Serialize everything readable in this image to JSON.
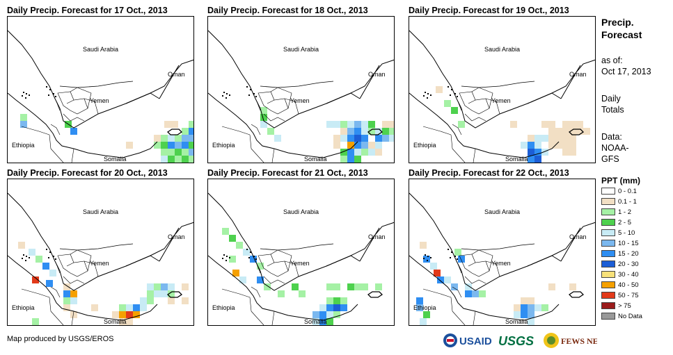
{
  "panels": [
    {
      "title": "Daily Precip. Forecast for 17 Oct., 2013",
      "rain": [
        [
          18,
          140,
          "#a5f1a5"
        ],
        [
          18,
          150,
          "#7bb8ef"
        ],
        [
          82,
          150,
          "#4ed14e"
        ],
        [
          90,
          160,
          "#2f8ef2"
        ],
        [
          170,
          180,
          "#f2dfc4"
        ],
        [
          225,
          150,
          "#f2dfc4"
        ],
        [
          235,
          150,
          "#f2dfc4"
        ],
        [
          260,
          150,
          "#a5f1a5"
        ],
        [
          250,
          160,
          "#a5f1a5"
        ],
        [
          260,
          160,
          "#2f8ef2"
        ],
        [
          210,
          170,
          "#f2dfc4"
        ],
        [
          220,
          170,
          "#a5f1a5"
        ],
        [
          230,
          170,
          "#c8ebf5"
        ],
        [
          240,
          170,
          "#a5f1a5"
        ],
        [
          250,
          170,
          "#7bb8ef"
        ],
        [
          260,
          170,
          "#7bb8ef"
        ],
        [
          210,
          180,
          "#a5f1a5"
        ],
        [
          220,
          180,
          "#4ed14e"
        ],
        [
          230,
          180,
          "#2f8ef2"
        ],
        [
          240,
          180,
          "#7bb8ef"
        ],
        [
          250,
          180,
          "#2f8ef2"
        ],
        [
          260,
          180,
          "#4ed14e"
        ],
        [
          220,
          190,
          "#a5f1a5"
        ],
        [
          230,
          190,
          "#a5f1a5"
        ],
        [
          240,
          190,
          "#4ed14e"
        ],
        [
          250,
          190,
          "#a5f1a5"
        ],
        [
          260,
          190,
          "#7bb8ef"
        ],
        [
          220,
          200,
          "#c8ebf5"
        ],
        [
          230,
          200,
          "#4ed14e"
        ],
        [
          240,
          200,
          "#a5f1a5"
        ],
        [
          250,
          200,
          "#4ed14e"
        ],
        [
          260,
          200,
          "#a5f1a5"
        ]
      ]
    },
    {
      "title": "Daily Precip. Forecast for 18 Oct., 2013",
      "rain": [
        [
          75,
          130,
          "#a5f1a5"
        ],
        [
          75,
          140,
          "#4ed14e"
        ],
        [
          75,
          150,
          "#c8ebf5"
        ],
        [
          85,
          160,
          "#a5f1a5"
        ],
        [
          95,
          170,
          "#c8ebf5"
        ],
        [
          170,
          150,
          "#c8ebf5"
        ],
        [
          180,
          150,
          "#c8ebf5"
        ],
        [
          190,
          150,
          "#a5f1a5"
        ],
        [
          200,
          150,
          "#c8ebf5"
        ],
        [
          210,
          150,
          "#7bb8ef"
        ],
        [
          220,
          150,
          "#c8ebf5"
        ],
        [
          230,
          150,
          "#4ed14e"
        ],
        [
          250,
          150,
          "#f2dfc4"
        ],
        [
          260,
          150,
          "#f2dfc4"
        ],
        [
          190,
          160,
          "#f2dfc4"
        ],
        [
          200,
          160,
          "#7bb8ef"
        ],
        [
          210,
          160,
          "#2f8ef2"
        ],
        [
          220,
          160,
          "#c8ebf5"
        ],
        [
          230,
          160,
          "#a5f1a5"
        ],
        [
          240,
          160,
          "#c8ebf5"
        ],
        [
          250,
          160,
          "#4ed14e"
        ],
        [
          260,
          160,
          "#a5f1a5"
        ],
        [
          180,
          170,
          "#f2dfc4"
        ],
        [
          190,
          170,
          "#c8ebf5"
        ],
        [
          200,
          170,
          "#2f8ef2"
        ],
        [
          210,
          170,
          "#1c5ed6"
        ],
        [
          220,
          170,
          "#2f8ef2"
        ],
        [
          240,
          170,
          "#2f8ef2"
        ],
        [
          250,
          170,
          "#7bb8ef"
        ],
        [
          260,
          170,
          "#c8ebf5"
        ],
        [
          180,
          180,
          "#f2dfc4"
        ],
        [
          200,
          180,
          "#f5a000"
        ],
        [
          210,
          180,
          "#2f8ef2"
        ],
        [
          220,
          180,
          "#7bb8ef"
        ],
        [
          230,
          180,
          "#f2dfc4"
        ],
        [
          240,
          180,
          "#c8ebf5"
        ],
        [
          190,
          190,
          "#4ed14e"
        ],
        [
          200,
          190,
          "#2f8ef2"
        ],
        [
          210,
          190,
          "#c8ebf5"
        ],
        [
          220,
          190,
          "#a5f1a5"
        ],
        [
          230,
          190,
          "#c8ebf5"
        ],
        [
          240,
          190,
          "#f2dfc4"
        ],
        [
          190,
          200,
          "#a5f1a5"
        ],
        [
          200,
          200,
          "#2f8ef2"
        ],
        [
          210,
          200,
          "#4ed14e"
        ]
      ]
    },
    {
      "title": "Daily Precip. Forecast for 19 Oct., 2013",
      "rain": [
        [
          38,
          100,
          "#f2dfc4"
        ],
        [
          50,
          120,
          "#a5f1a5"
        ],
        [
          60,
          130,
          "#4ed14e"
        ],
        [
          70,
          150,
          "#a5f1a5"
        ],
        [
          145,
          150,
          "#f2dfc4"
        ],
        [
          190,
          150,
          "#f2dfc4"
        ],
        [
          200,
          150,
          "#f2dfc4"
        ],
        [
          220,
          150,
          "#f2dfc4"
        ],
        [
          230,
          150,
          "#f2dfc4"
        ],
        [
          240,
          150,
          "#f2dfc4"
        ],
        [
          200,
          160,
          "#f2dfc4"
        ],
        [
          210,
          160,
          "#f2dfc4"
        ],
        [
          220,
          160,
          "#f2dfc4"
        ],
        [
          230,
          160,
          "#f2dfc4"
        ],
        [
          240,
          160,
          "#f2dfc4"
        ],
        [
          250,
          160,
          "#f2dfc4"
        ],
        [
          170,
          170,
          "#f2dfc4"
        ],
        [
          180,
          170,
          "#c8ebf5"
        ],
        [
          190,
          170,
          "#c8ebf5"
        ],
        [
          200,
          170,
          "#f2dfc4"
        ],
        [
          210,
          170,
          "#f2dfc4"
        ],
        [
          220,
          170,
          "#f2dfc4"
        ],
        [
          230,
          170,
          "#f2dfc4"
        ],
        [
          160,
          180,
          "#c8ebf5"
        ],
        [
          170,
          180,
          "#2f8ef2"
        ],
        [
          180,
          180,
          "#c8ebf5"
        ],
        [
          200,
          180,
          "#f2dfc4"
        ],
        [
          210,
          180,
          "#f2dfc4"
        ],
        [
          220,
          180,
          "#f2dfc4"
        ],
        [
          230,
          180,
          "#f2dfc4"
        ],
        [
          170,
          190,
          "#1c5ed6"
        ],
        [
          180,
          190,
          "#2f8ef2"
        ],
        [
          190,
          190,
          "#c8ebf5"
        ],
        [
          220,
          190,
          "#f2dfc4"
        ],
        [
          230,
          190,
          "#f2dfc4"
        ],
        [
          170,
          200,
          "#2f8ef2"
        ],
        [
          180,
          200,
          "#1c5ed6"
        ]
      ]
    },
    {
      "title": "Daily Precip. Forecast for 20 Oct., 2013",
      "rain": [
        [
          15,
          90,
          "#f2dfc4"
        ],
        [
          30,
          100,
          "#c8ebf5"
        ],
        [
          40,
          110,
          "#a5f1a5"
        ],
        [
          50,
          120,
          "#2f8ef2"
        ],
        [
          60,
          130,
          "#c8ebf5"
        ],
        [
          35,
          140,
          "#e23a1a"
        ],
        [
          55,
          145,
          "#2f8ef2"
        ],
        [
          80,
          150,
          "#f2dfc4"
        ],
        [
          80,
          160,
          "#2f8ef2"
        ],
        [
          90,
          160,
          "#f5a000"
        ],
        [
          80,
          170,
          "#a5f1a5"
        ],
        [
          90,
          170,
          "#c8ebf5"
        ],
        [
          35,
          200,
          "#a5f1a5"
        ],
        [
          80,
          180,
          "#f2dfc4"
        ],
        [
          90,
          190,
          "#f2dfc4"
        ],
        [
          120,
          180,
          "#f2dfc4"
        ],
        [
          200,
          150,
          "#c8ebf5"
        ],
        [
          210,
          150,
          "#a5f1a5"
        ],
        [
          220,
          150,
          "#7bb8ef"
        ],
        [
          230,
          150,
          "#c8ebf5"
        ],
        [
          250,
          150,
          "#f2dfc4"
        ],
        [
          200,
          160,
          "#a5f1a5"
        ],
        [
          210,
          160,
          "#c8ebf5"
        ],
        [
          220,
          160,
          "#c8ebf5"
        ],
        [
          230,
          160,
          "#a5f1a5"
        ],
        [
          190,
          170,
          "#c8ebf5"
        ],
        [
          200,
          170,
          "#a5f1a5"
        ],
        [
          230,
          170,
          "#f2dfc4"
        ],
        [
          250,
          170,
          "#f2dfc4"
        ],
        [
          160,
          180,
          "#a5f1a5"
        ],
        [
          170,
          180,
          "#c8ebf5"
        ],
        [
          180,
          180,
          "#2f8ef2"
        ],
        [
          190,
          180,
          "#c8ebf5"
        ],
        [
          150,
          190,
          "#f2dfc4"
        ],
        [
          160,
          190,
          "#f5a000"
        ],
        [
          170,
          190,
          "#e23a1a"
        ],
        [
          180,
          190,
          "#f5a000"
        ],
        [
          160,
          200,
          "#f2dfc4"
        ],
        [
          170,
          200,
          "#f2dfc4"
        ]
      ]
    },
    {
      "title": "Daily Precip. Forecast for 21 Oct., 2013",
      "rain": [
        [
          20,
          70,
          "#a5f1a5"
        ],
        [
          30,
          80,
          "#4ed14e"
        ],
        [
          40,
          90,
          "#a5f1a5"
        ],
        [
          50,
          100,
          "#c8ebf5"
        ],
        [
          60,
          110,
          "#2f8ef2"
        ],
        [
          70,
          120,
          "#a5f1a5"
        ],
        [
          30,
          110,
          "#a5f1a5"
        ],
        [
          35,
          130,
          "#f5a000"
        ],
        [
          45,
          140,
          "#c8ebf5"
        ],
        [
          70,
          140,
          "#2f8ef2"
        ],
        [
          80,
          150,
          "#a5f1a5"
        ],
        [
          100,
          160,
          "#a5f1a5"
        ],
        [
          120,
          150,
          "#4ed14e"
        ],
        [
          130,
          160,
          "#a5f1a5"
        ],
        [
          170,
          150,
          "#a5f1a5"
        ],
        [
          180,
          150,
          "#a5f1a5"
        ],
        [
          200,
          150,
          "#4ed14e"
        ],
        [
          210,
          150,
          "#a5f1a5"
        ],
        [
          220,
          150,
          "#a5f1a5"
        ],
        [
          240,
          150,
          "#a5f1a5"
        ],
        [
          170,
          170,
          "#a5f1a5"
        ],
        [
          180,
          170,
          "#4ed14e"
        ],
        [
          190,
          170,
          "#a5f1a5"
        ],
        [
          160,
          180,
          "#c8ebf5"
        ],
        [
          170,
          180,
          "#2f8ef2"
        ],
        [
          180,
          180,
          "#1c5ed6"
        ],
        [
          190,
          180,
          "#2f8ef2"
        ],
        [
          150,
          190,
          "#7bb8ef"
        ],
        [
          160,
          190,
          "#2f8ef2"
        ],
        [
          170,
          190,
          "#c8ebf5"
        ],
        [
          180,
          190,
          "#a5f1a5"
        ],
        [
          150,
          200,
          "#c8ebf5"
        ],
        [
          160,
          200,
          "#2f8ef2"
        ],
        [
          170,
          200,
          "#4ed14e"
        ]
      ]
    },
    {
      "title": "Daily Precip. Forecast for 22 Oct., 2013",
      "rain": [
        [
          15,
          90,
          "#f2dfc4"
        ],
        [
          20,
          110,
          "#2f8ef2"
        ],
        [
          30,
          120,
          "#c8ebf5"
        ],
        [
          35,
          130,
          "#e23a1a"
        ],
        [
          40,
          140,
          "#2f8ef2"
        ],
        [
          50,
          140,
          "#c8ebf5"
        ],
        [
          60,
          150,
          "#7bb8ef"
        ],
        [
          65,
          100,
          "#a5f1a5"
        ],
        [
          70,
          110,
          "#2f8ef2"
        ],
        [
          80,
          160,
          "#2f8ef2"
        ],
        [
          90,
          160,
          "#7bb8ef"
        ],
        [
          100,
          160,
          "#a5f1a5"
        ],
        [
          80,
          150,
          "#c8ebf5"
        ],
        [
          10,
          170,
          "#2f8ef2"
        ],
        [
          10,
          180,
          "#7bb8ef"
        ],
        [
          20,
          190,
          "#4ed14e"
        ],
        [
          15,
          200,
          "#c8ebf5"
        ],
        [
          200,
          150,
          "#f2dfc4"
        ],
        [
          230,
          150,
          "#f2dfc4"
        ],
        [
          160,
          170,
          "#f2dfc4"
        ],
        [
          170,
          170,
          "#f2dfc4"
        ],
        [
          150,
          180,
          "#f2dfc4"
        ],
        [
          160,
          180,
          "#2f8ef2"
        ],
        [
          170,
          180,
          "#7bb8ef"
        ],
        [
          180,
          180,
          "#c8ebf5"
        ],
        [
          190,
          180,
          "#a5f1a5"
        ],
        [
          150,
          190,
          "#c8ebf5"
        ],
        [
          160,
          190,
          "#2f8ef2"
        ],
        [
          170,
          190,
          "#7bb8ef"
        ],
        [
          170,
          200,
          "#c8ebf5"
        ]
      ]
    }
  ],
  "map_labels": {
    "saudi": "Saudi Arabia",
    "oman": "Oman",
    "yemen": "Yemen",
    "ethiopia": "Ethiopia",
    "somalia": "Somalia"
  },
  "sidebar": {
    "title_line1": "Precip.",
    "title_line2": "Forecast",
    "asof_label": "as of:",
    "asof_date": "Oct 17, 2013",
    "daily1": "Daily",
    "daily2": "Totals",
    "data1": "Data:",
    "data2": "NOAA-",
    "data3": "GFS"
  },
  "legend": {
    "title": "PPT (mm)",
    "items": [
      {
        "label": "0 - 0.1",
        "color": "#ffffff"
      },
      {
        "label": "0.1 - 1",
        "color": "#f2dfc4"
      },
      {
        "label": "1 - 2",
        "color": "#a5f1a5"
      },
      {
        "label": "2 - 5",
        "color": "#4ed14e"
      },
      {
        "label": "5 - 10",
        "color": "#c8ebf5"
      },
      {
        "label": "10 - 15",
        "color": "#7bb8ef"
      },
      {
        "label": "15 - 20",
        "color": "#2f8ef2"
      },
      {
        "label": "20 - 30",
        "color": "#1c5ed6"
      },
      {
        "label": "30 - 40",
        "color": "#f7e17a"
      },
      {
        "label": "40 - 50",
        "color": "#f5a000"
      },
      {
        "label": "50 - 75",
        "color": "#e23a1a"
      },
      {
        "label": "> 75",
        "color": "#9b1b1b"
      },
      {
        "label": "No Data",
        "color": "#999999"
      }
    ]
  },
  "credit": "Map produced by USGS/EROS",
  "logos": {
    "usaid": "USAID",
    "usgs": "USGS",
    "fewsnet": "FEWS NET"
  }
}
